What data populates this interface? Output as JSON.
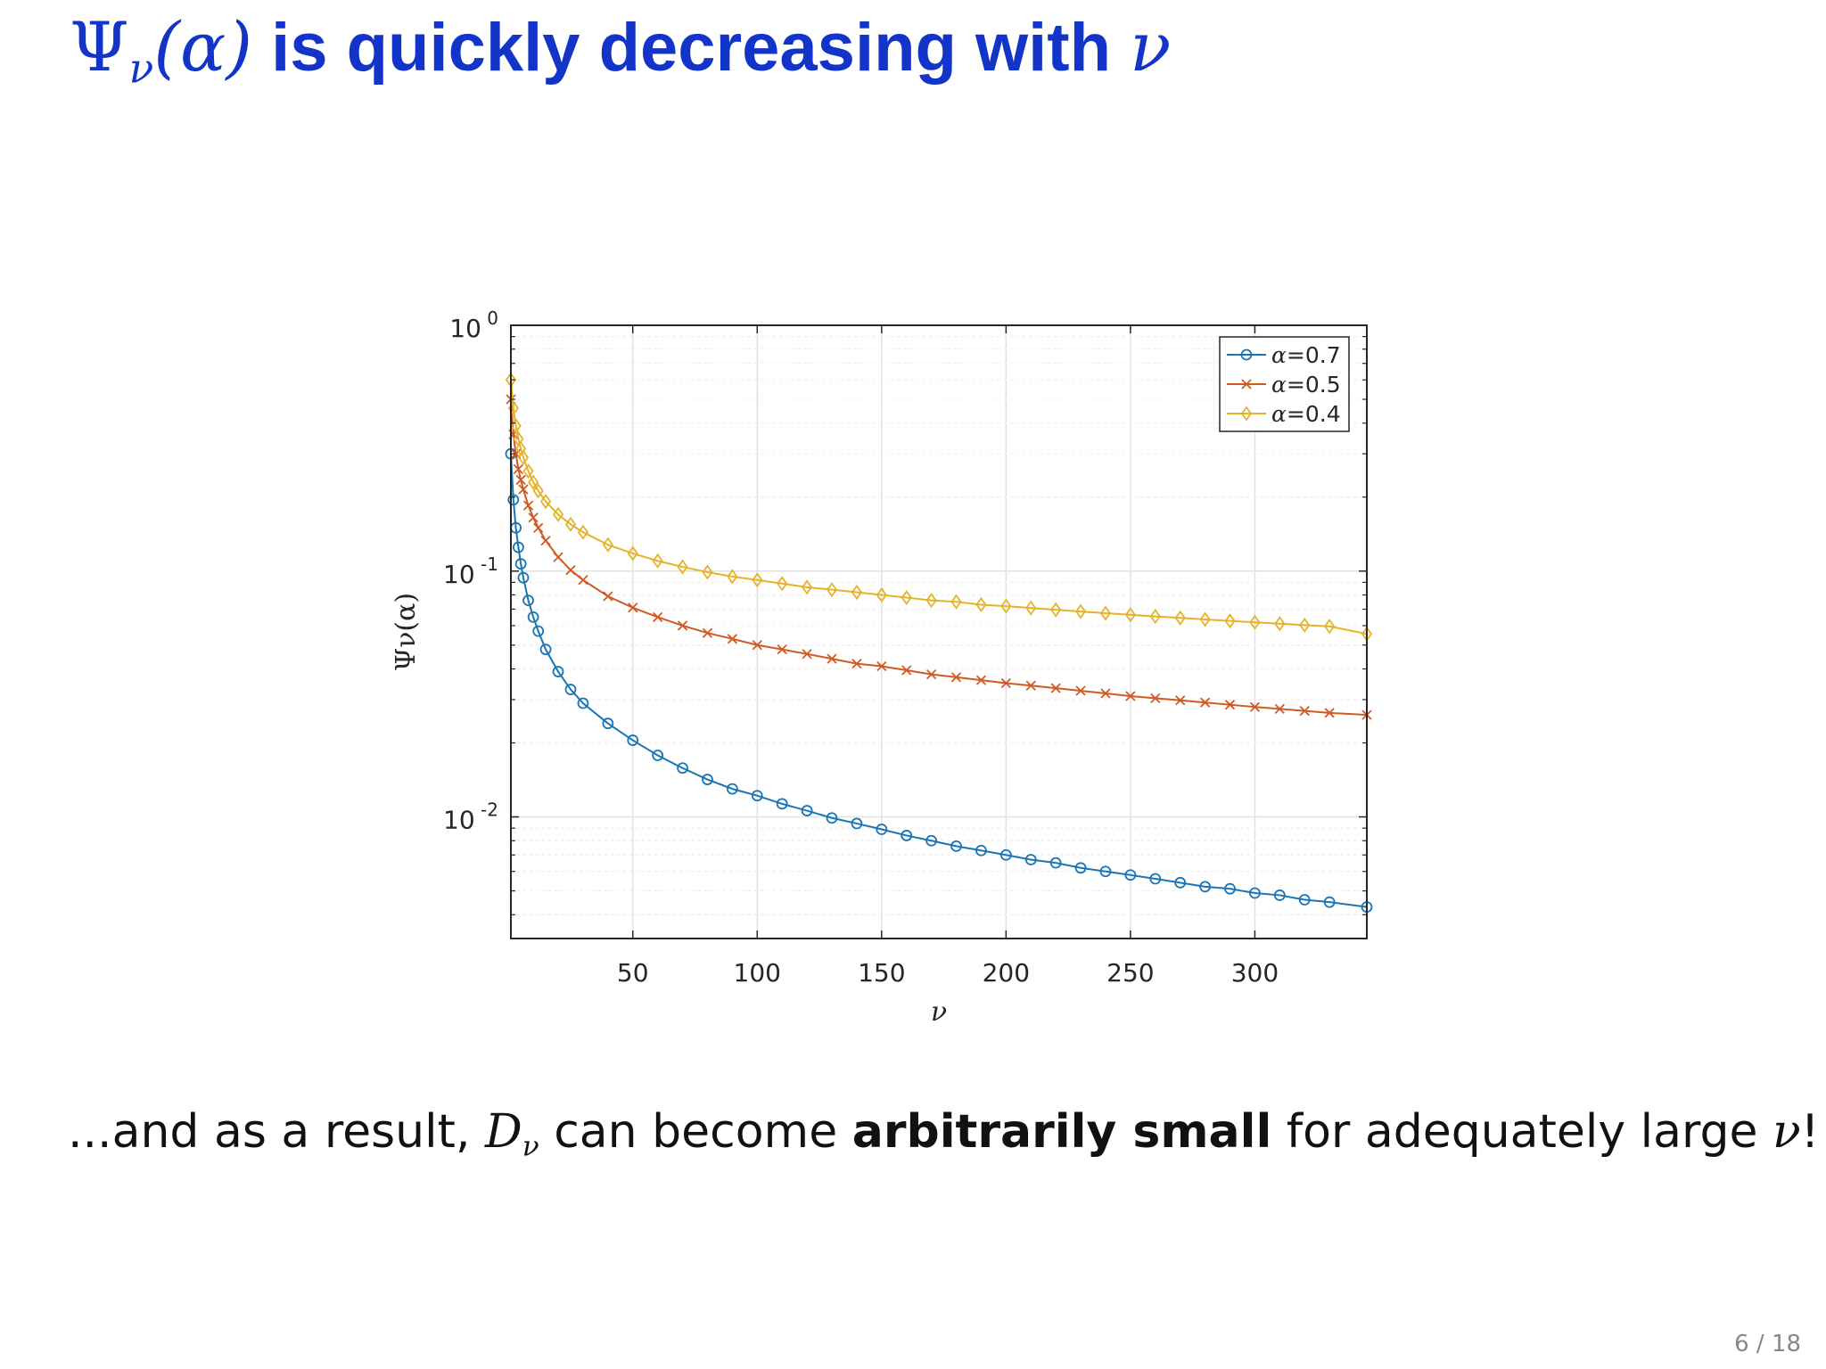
{
  "slide": {
    "title_psi": "Ψ",
    "title_nu_sub": "ν",
    "title_arg": "(α)",
    "title_text": " is quickly decreasing with ",
    "title_nu": "ν",
    "body_prefix": "...and as a result, ",
    "body_D": "D",
    "body_D_sub": "ν",
    "body_mid": " can become ",
    "body_bold": "arbitrarily small",
    "body_suffix": " for adequately large ",
    "body_nu": "ν",
    "body_end": "!",
    "page_number": "6 / 18"
  },
  "chart_data": {
    "type": "line",
    "title": "",
    "xlabel": "ν",
    "ylabel": "Ψν(α)",
    "y_scale": "log",
    "xlim": [
      1,
      345
    ],
    "ylim": [
      0.0032,
      1
    ],
    "x_ticks": [
      50,
      100,
      150,
      200,
      250,
      300
    ],
    "y_ticks": [
      {
        "value": 1,
        "base": "10",
        "exp": "0"
      },
      {
        "value": 0.1,
        "base": "10",
        "exp": "-1"
      },
      {
        "value": 0.01,
        "base": "10",
        "exp": "-2"
      }
    ],
    "grid": true,
    "legend_position": "top-right",
    "series": [
      {
        "name": "α=0.7",
        "label_greek": "α",
        "label_value": "=0.7",
        "color": "#1a75b5",
        "marker": "circle",
        "x": [
          1,
          2,
          3,
          4,
          5,
          6,
          8,
          10,
          12,
          15,
          20,
          25,
          30,
          40,
          50,
          60,
          70,
          80,
          90,
          100,
          110,
          120,
          130,
          140,
          150,
          160,
          170,
          180,
          190,
          200,
          210,
          220,
          230,
          240,
          250,
          260,
          270,
          280,
          290,
          300,
          310,
          320,
          330,
          345
        ],
        "y": [
          0.3,
          0.195,
          0.15,
          0.125,
          0.107,
          0.094,
          0.076,
          0.065,
          0.057,
          0.048,
          0.039,
          0.033,
          0.029,
          0.024,
          0.0205,
          0.0178,
          0.0158,
          0.0142,
          0.013,
          0.0122,
          0.0113,
          0.0106,
          0.0099,
          0.0094,
          0.0089,
          0.0084,
          0.008,
          0.0076,
          0.0073,
          0.007,
          0.0067,
          0.0065,
          0.0062,
          0.006,
          0.0058,
          0.0056,
          0.0054,
          0.0052,
          0.0051,
          0.0049,
          0.0048,
          0.0046,
          0.0045,
          0.0043
        ]
      },
      {
        "name": "α=0.5",
        "label_greek": "α",
        "label_value": "=0.5",
        "color": "#d15a24",
        "marker": "x",
        "x": [
          1,
          2,
          3,
          4,
          5,
          6,
          8,
          10,
          12,
          15,
          20,
          25,
          30,
          40,
          50,
          60,
          70,
          80,
          90,
          100,
          110,
          120,
          130,
          140,
          150,
          160,
          170,
          180,
          190,
          200,
          210,
          220,
          230,
          240,
          250,
          260,
          270,
          280,
          290,
          300,
          310,
          320,
          330,
          345
        ],
        "y": [
          0.5,
          0.36,
          0.3,
          0.26,
          0.235,
          0.215,
          0.185,
          0.165,
          0.15,
          0.133,
          0.114,
          0.101,
          0.092,
          0.079,
          0.071,
          0.065,
          0.06,
          0.056,
          0.053,
          0.05,
          0.048,
          0.046,
          0.044,
          0.042,
          0.041,
          0.0395,
          0.038,
          0.037,
          0.036,
          0.035,
          0.0342,
          0.0334,
          0.0326,
          0.0318,
          0.031,
          0.0304,
          0.0298,
          0.0292,
          0.0286,
          0.028,
          0.0275,
          0.027,
          0.0265,
          0.026
        ]
      },
      {
        "name": "α=0.4",
        "label_greek": "α",
        "label_value": "=0.4",
        "color": "#e5b32a",
        "marker": "diamond",
        "x": [
          1,
          2,
          3,
          4,
          5,
          6,
          8,
          10,
          12,
          15,
          20,
          25,
          30,
          40,
          50,
          60,
          70,
          80,
          90,
          100,
          110,
          120,
          130,
          140,
          150,
          160,
          170,
          180,
          190,
          200,
          210,
          220,
          230,
          240,
          250,
          260,
          270,
          280,
          290,
          300,
          310,
          320,
          330,
          345
        ],
        "y": [
          0.6,
          0.46,
          0.39,
          0.345,
          0.315,
          0.29,
          0.255,
          0.23,
          0.212,
          0.192,
          0.17,
          0.155,
          0.144,
          0.128,
          0.118,
          0.11,
          0.104,
          0.099,
          0.095,
          0.092,
          0.089,
          0.086,
          0.084,
          0.082,
          0.08,
          0.078,
          0.076,
          0.075,
          0.073,
          0.072,
          0.0708,
          0.0696,
          0.0685,
          0.0674,
          0.0664,
          0.0654,
          0.0645,
          0.0636,
          0.0627,
          0.0619,
          0.0611,
          0.0603,
          0.0596,
          0.0555
        ]
      }
    ]
  }
}
